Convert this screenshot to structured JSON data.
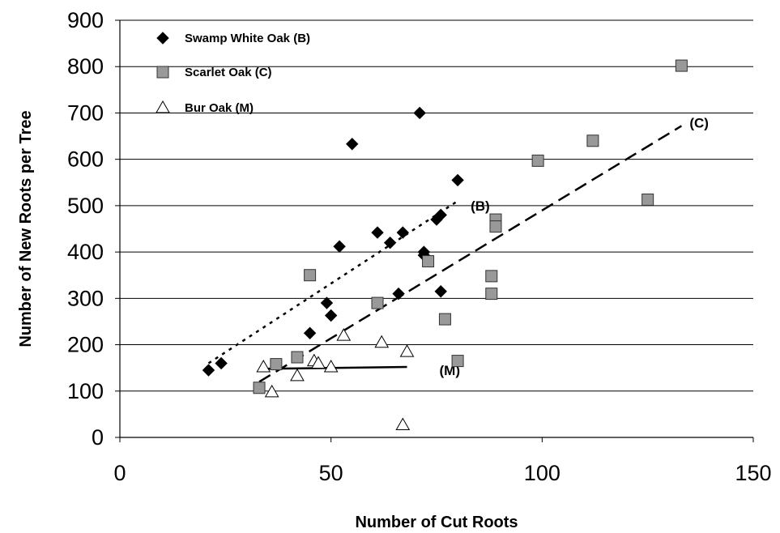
{
  "chart_data": {
    "type": "scatter",
    "title": "",
    "xlabel": "Number of Cut Roots",
    "ylabel": "Number of New Roots per Tree",
    "xlim": [
      0,
      150
    ],
    "ylim": [
      0,
      900
    ],
    "xticks": [
      "0",
      "50",
      "100",
      "150"
    ],
    "yticks": [
      "0",
      "100",
      "200",
      "300",
      "400",
      "500",
      "600",
      "700",
      "800",
      "900"
    ],
    "grid": "horizontal",
    "legend_position": "top-left",
    "series": [
      {
        "name": "Swamp White Oak (B)",
        "marker": "diamond",
        "color": "#000000",
        "points": [
          [
            21,
            145
          ],
          [
            24,
            160
          ],
          [
            45,
            225
          ],
          [
            49,
            290
          ],
          [
            50,
            263
          ],
          [
            52,
            412
          ],
          [
            55,
            633
          ],
          [
            61,
            442
          ],
          [
            64,
            420
          ],
          [
            66,
            310
          ],
          [
            67,
            442
          ],
          [
            71,
            700
          ],
          [
            72,
            400
          ],
          [
            72,
            393
          ],
          [
            75,
            470
          ],
          [
            76,
            480
          ],
          [
            76,
            315
          ],
          [
            80,
            555
          ]
        ]
      },
      {
        "name": "Scarlet Oak (C)",
        "marker": "square",
        "color": "#999999",
        "points": [
          [
            33,
            107
          ],
          [
            37,
            158
          ],
          [
            42,
            173
          ],
          [
            45,
            350
          ],
          [
            61,
            290
          ],
          [
            73,
            380
          ],
          [
            77,
            255
          ],
          [
            80,
            165
          ],
          [
            88,
            348
          ],
          [
            88,
            310
          ],
          [
            89,
            470
          ],
          [
            89,
            455
          ],
          [
            99,
            597
          ],
          [
            112,
            640
          ],
          [
            125,
            513
          ],
          [
            133,
            802
          ]
        ]
      },
      {
        "name": "Bur Oak (M)",
        "marker": "triangle",
        "color": "#ffffff",
        "points": [
          [
            34,
            152
          ],
          [
            36,
            98
          ],
          [
            42,
            133
          ],
          [
            46,
            165
          ],
          [
            47,
            160
          ],
          [
            50,
            152
          ],
          [
            53,
            220
          ],
          [
            62,
            205
          ],
          [
            67,
            27
          ],
          [
            68,
            185
          ]
        ]
      }
    ],
    "trendlines": [
      {
        "label": "(B)",
        "style": "dotted",
        "from": [
          21,
          160
        ],
        "to": [
          80,
          510
        ]
      },
      {
        "label": "(C)",
        "style": "dashed",
        "from": [
          33,
          120
        ],
        "to": [
          133,
          672
        ]
      },
      {
        "label": "(M)",
        "style": "solid",
        "from": [
          34,
          148
        ],
        "to": [
          68,
          152
        ]
      }
    ]
  }
}
